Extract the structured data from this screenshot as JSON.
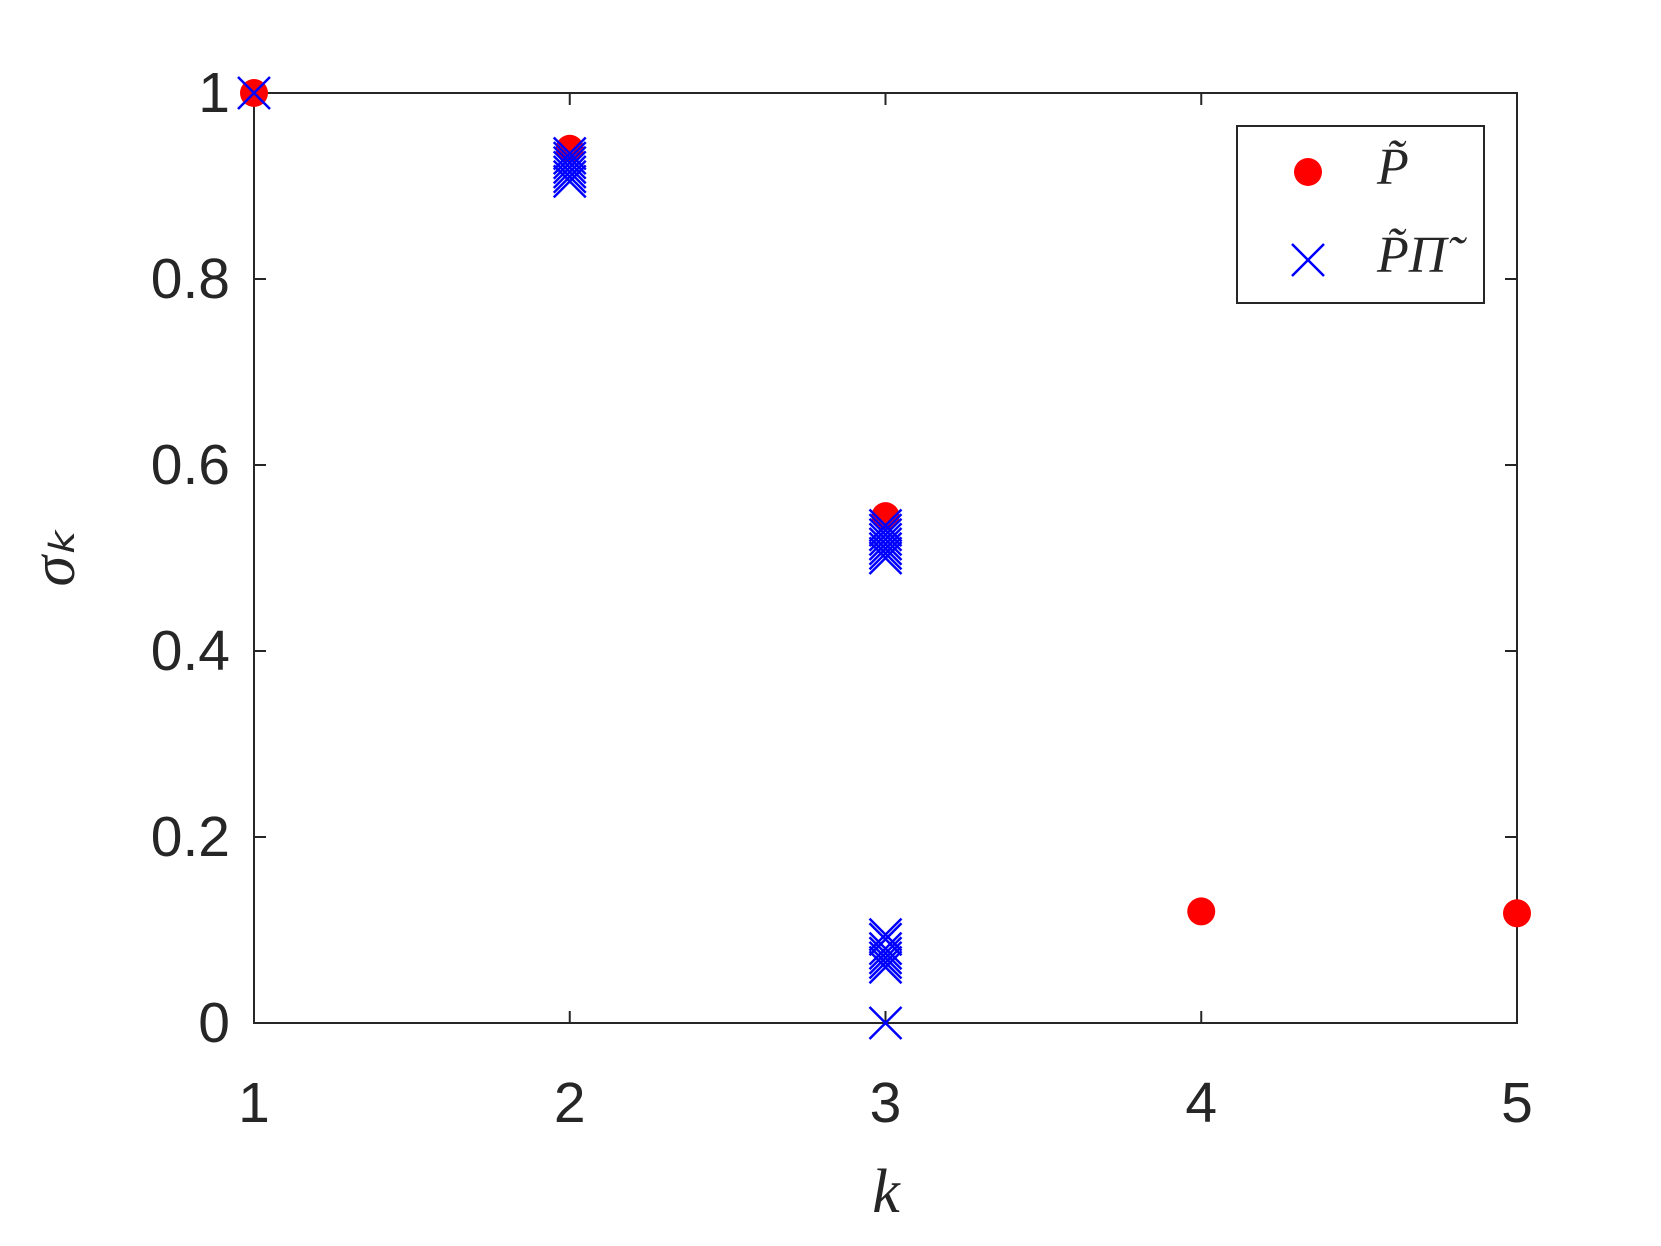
{
  "chart_data": {
    "type": "scatter",
    "xlabel": "k",
    "ylabel": "σₖ",
    "xlim": [
      1,
      5
    ],
    "ylim": [
      0,
      1
    ],
    "xticks": [
      1,
      2,
      3,
      4,
      5
    ],
    "yticks": [
      0,
      0.2,
      0.4,
      0.6,
      0.8,
      1
    ],
    "legend": "top-right",
    "series": [
      {
        "name": "P̃",
        "color": "#ff0000",
        "marker": "circle",
        "x": [
          1,
          2,
          3,
          4,
          5
        ],
        "values": [
          1,
          0.94,
          0.545,
          0.12,
          0.118
        ]
      },
      {
        "name": "P̃Π̃",
        "color": "#0000ff",
        "marker": "cross",
        "x": [
          1,
          2,
          2,
          2,
          2,
          2,
          2,
          2,
          3,
          3,
          3,
          3,
          3,
          3,
          3,
          3,
          3,
          3,
          3,
          3,
          3,
          3,
          3,
          3
        ],
        "values": [
          1,
          0.935,
          0.93,
          0.925,
          0.92,
          0.915,
          0.91,
          0.905,
          0.535,
          0.53,
          0.525,
          0.52,
          0.515,
          0.51,
          0.505,
          0.5,
          0.095,
          0.09,
          0.08,
          0.075,
          0.07,
          0.065,
          0.06,
          0
        ]
      }
    ]
  }
}
